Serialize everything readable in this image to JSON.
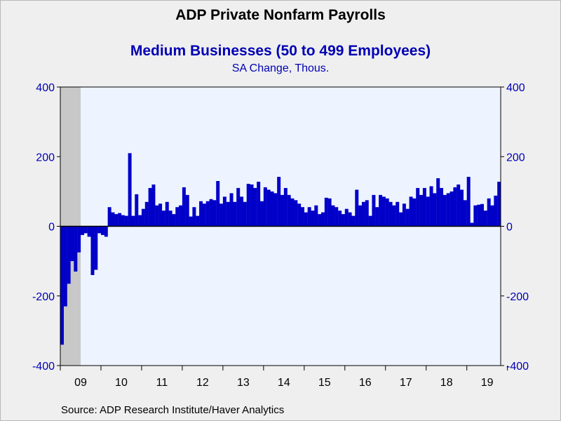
{
  "header": {
    "title": "ADP Private Nonfarm Payrolls",
    "subtitle": "Medium Businesses (50 to 499 Employees)",
    "units": "SA Change, Thous."
  },
  "footer": {
    "source": "Source:  ADP Research Institute/Haver Analytics"
  },
  "colors": {
    "bar": "#0000c8",
    "axis_text": "#0000b4",
    "plot_bg": "#eef4ff",
    "recession": "#c8c8c8"
  },
  "chart_data": {
    "type": "bar",
    "title": "ADP Private Nonfarm Payrolls",
    "subtitle": "Medium Businesses (50 to 499 Employees)",
    "ylabel": "SA Change, Thous.",
    "ylim": [
      -400,
      400
    ],
    "yticks": [
      -400,
      -200,
      0,
      200,
      400
    ],
    "x_start": "2009-01",
    "x_end": "2019-10",
    "year_labels": [
      "09",
      "10",
      "11",
      "12",
      "13",
      "14",
      "15",
      "16",
      "17",
      "18",
      "19"
    ],
    "recession_shading": [
      "2009-01",
      "2009-06"
    ],
    "categories": [
      "2009-01",
      "2009-02",
      "2009-03",
      "2009-04",
      "2009-05",
      "2009-06",
      "2009-07",
      "2009-08",
      "2009-09",
      "2009-10",
      "2009-11",
      "2009-12",
      "2010-01",
      "2010-02",
      "2010-03",
      "2010-04",
      "2010-05",
      "2010-06",
      "2010-07",
      "2010-08",
      "2010-09",
      "2010-10",
      "2010-11",
      "2010-12",
      "2011-01",
      "2011-02",
      "2011-03",
      "2011-04",
      "2011-05",
      "2011-06",
      "2011-07",
      "2011-08",
      "2011-09",
      "2011-10",
      "2011-11",
      "2011-12",
      "2012-01",
      "2012-02",
      "2012-03",
      "2012-04",
      "2012-05",
      "2012-06",
      "2012-07",
      "2012-08",
      "2012-09",
      "2012-10",
      "2012-11",
      "2012-12",
      "2013-01",
      "2013-02",
      "2013-03",
      "2013-04",
      "2013-05",
      "2013-06",
      "2013-07",
      "2013-08",
      "2013-09",
      "2013-10",
      "2013-11",
      "2013-12",
      "2014-01",
      "2014-02",
      "2014-03",
      "2014-04",
      "2014-05",
      "2014-06",
      "2014-07",
      "2014-08",
      "2014-09",
      "2014-10",
      "2014-11",
      "2014-12",
      "2015-01",
      "2015-02",
      "2015-03",
      "2015-04",
      "2015-05",
      "2015-06",
      "2015-07",
      "2015-08",
      "2015-09",
      "2015-10",
      "2015-11",
      "2015-12",
      "2016-01",
      "2016-02",
      "2016-03",
      "2016-04",
      "2016-05",
      "2016-06",
      "2016-07",
      "2016-08",
      "2016-09",
      "2016-10",
      "2016-11",
      "2016-12",
      "2017-01",
      "2017-02",
      "2017-03",
      "2017-04",
      "2017-05",
      "2017-06",
      "2017-07",
      "2017-08",
      "2017-09",
      "2017-10",
      "2017-11",
      "2017-12",
      "2018-01",
      "2018-02",
      "2018-03",
      "2018-04",
      "2018-05",
      "2018-06",
      "2018-07",
      "2018-08",
      "2018-09",
      "2018-10",
      "2018-11",
      "2018-12",
      "2019-01",
      "2019-02",
      "2019-03",
      "2019-04",
      "2019-05",
      "2019-06",
      "2019-07",
      "2019-08",
      "2019-09",
      "2019-10"
    ],
    "values": [
      -340,
      -230,
      -165,
      -100,
      -130,
      -75,
      -25,
      -20,
      -30,
      -140,
      -125,
      -20,
      -25,
      -30,
      55,
      40,
      35,
      38,
      32,
      30,
      210,
      30,
      92,
      32,
      50,
      70,
      110,
      120,
      60,
      65,
      45,
      70,
      45,
      35,
      55,
      60,
      112,
      90,
      28,
      55,
      30,
      72,
      65,
      72,
      78,
      75,
      130,
      65,
      85,
      70,
      95,
      70,
      110,
      85,
      70,
      122,
      120,
      110,
      128,
      72,
      112,
      105,
      100,
      95,
      142,
      90,
      110,
      90,
      80,
      75,
      65,
      55,
      40,
      55,
      45,
      60,
      35,
      40,
      82,
      80,
      60,
      55,
      45,
      35,
      50,
      40,
      30,
      105,
      60,
      70,
      75,
      30,
      90,
      55,
      90,
      85,
      80,
      70,
      60,
      70,
      40,
      65,
      50,
      85,
      80,
      110,
      90,
      110,
      85,
      115,
      95,
      138,
      110,
      90,
      95,
      100,
      112,
      120,
      105,
      75,
      142,
      10,
      60,
      62,
      64,
      45,
      80,
      60,
      88,
      128
    ]
  }
}
